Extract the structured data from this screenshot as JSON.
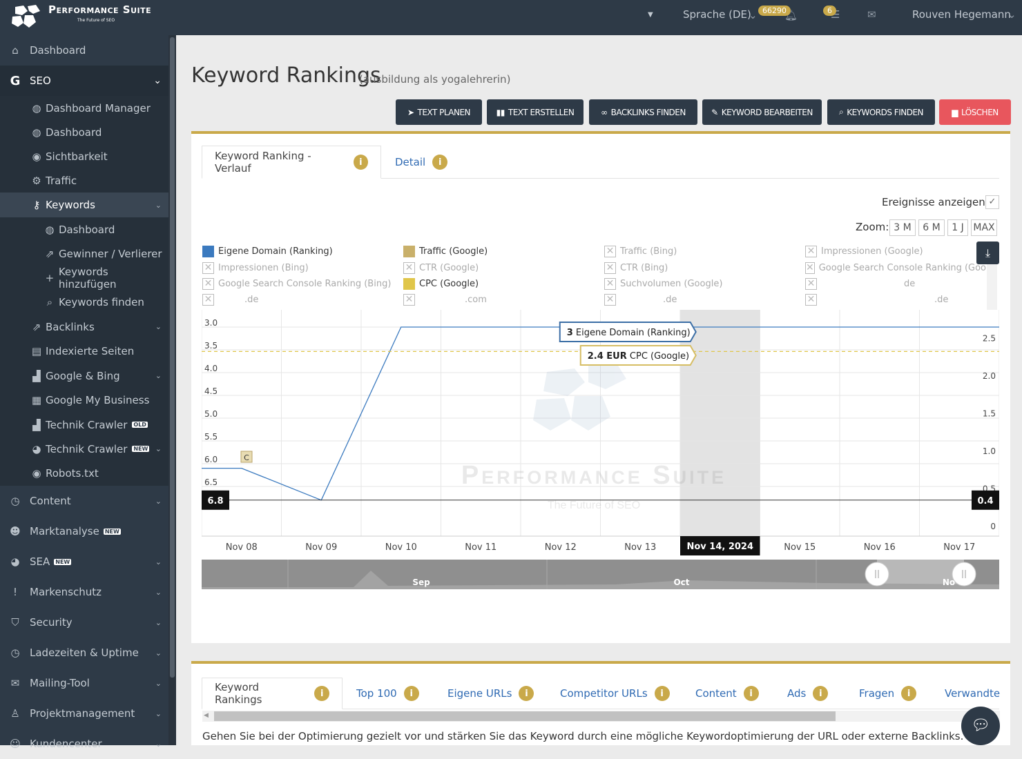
{
  "header": {
    "brand": "Performance Suite",
    "brand_sub": "The Future of SEO",
    "language": "Sprache (DE)",
    "notif_count": "66290",
    "task_count": "6",
    "user": "Rouven Hegemann"
  },
  "sidebar": {
    "items": [
      {
        "label": "Dashboard",
        "icon": "home-icon"
      },
      {
        "label": "SEO",
        "icon": "google-g-icon"
      },
      {
        "label": "Dashboard Manager",
        "icon": "dashboard-icon"
      },
      {
        "label": "Dashboard",
        "icon": "dashboard-icon"
      },
      {
        "label": "Sichtbarkeit",
        "icon": "eye-icon"
      },
      {
        "label": "Traffic",
        "icon": "cogs-icon"
      },
      {
        "label": "Keywords",
        "icon": "key-icon"
      },
      {
        "label": "Dashboard",
        "icon": "dashboard-icon"
      },
      {
        "label": "Gewinner / Verlierer",
        "icon": "external-link-icon"
      },
      {
        "label": "Keywords hinzufügen",
        "icon": "plus-icon"
      },
      {
        "label": "Keywords finden",
        "icon": "search-icon"
      },
      {
        "label": "Backlinks",
        "icon": "external-link-icon"
      },
      {
        "label": "Indexierte Seiten",
        "icon": "file-icon"
      },
      {
        "label": "Google & Bing",
        "icon": "area-chart-icon"
      },
      {
        "label": "Google My Business",
        "icon": "store-icon"
      },
      {
        "label": "Technik Crawler",
        "icon": "area-chart-icon",
        "tag": "OLD"
      },
      {
        "label": "Technik Crawler",
        "icon": "pie-chart-icon",
        "tag": "NEW"
      },
      {
        "label": "Robots.txt",
        "icon": "eye-icon"
      },
      {
        "label": "Content",
        "icon": "clock-icon"
      },
      {
        "label": "Marktanalyse",
        "icon": "users-icon",
        "tag": "NEW"
      },
      {
        "label": "SEA",
        "icon": "pie-chart-icon",
        "tag": "NEW"
      },
      {
        "label": "Markenschutz",
        "icon": "exclamation-icon"
      },
      {
        "label": "Security",
        "icon": "shield-icon"
      },
      {
        "label": "Ladezeiten & Uptime",
        "icon": "clock-icon"
      },
      {
        "label": "Mailing-Tool",
        "icon": "envelope-icon"
      },
      {
        "label": "Projektmanagement",
        "icon": "sitemap-icon"
      },
      {
        "label": "Kundencenter",
        "icon": "user-icon"
      }
    ]
  },
  "page": {
    "title": "Keyword Rankings",
    "subtitle": "(ausbildung als yogalehrerin)"
  },
  "toolbar": {
    "buttons": [
      "TEXT PLANEN",
      "TEXT ERSTELLEN",
      "BACKLINKS FINDEN",
      "KEYWORD BEARBEITEN",
      "KEYWORDS FINDEN",
      "LÖSCHEN"
    ]
  },
  "chart_panel": {
    "tab_active": "Keyword Ranking - Verlauf",
    "tab_detail": "Detail",
    "events_label": "Ereignisse anzeigen",
    "zoom_label": "Zoom:",
    "zoom_options": [
      "3 M",
      "6 M",
      "1 J",
      "MAX"
    ],
    "legend": [
      {
        "label": "Eigene Domain (Ranking)",
        "color": "#3b7abf",
        "on": true
      },
      {
        "label": "Traffic (Google)",
        "color": "#c9b06a",
        "on": true
      },
      {
        "label": "Traffic (Bing)",
        "on": false
      },
      {
        "label": "Impressionen (Google)",
        "on": false
      },
      {
        "label": "Impressionen (Bing)",
        "on": false
      },
      {
        "label": "CTR (Google)",
        "on": false
      },
      {
        "label": "CTR (Bing)",
        "on": false
      },
      {
        "label": "Google Search Console Ranking (Googl",
        "on": false
      },
      {
        "label": "Google Search Console Ranking (Bing)",
        "on": false
      },
      {
        "label": "CPC (Google)",
        "color": "#e0c64a",
        "on": true
      },
      {
        "label": "Suchvolumen (Google)",
        "on": false
      },
      {
        "label": "de",
        "on": false
      },
      {
        "label": ".de",
        "on": false
      },
      {
        "label": ".com",
        "on": false
      },
      {
        "label": ".de",
        "on": false
      },
      {
        "label": ".de",
        "on": false
      }
    ]
  },
  "chart_data": {
    "type": "line",
    "categories": [
      "Nov 08",
      "Nov 09",
      "Nov 10",
      "Nov 11",
      "Nov 12",
      "Nov 13",
      "Nov 14, 2024",
      "Nov 15",
      "Nov 16",
      "Nov 17"
    ],
    "series": [
      {
        "name": "Eigene Domain (Ranking)",
        "axis": "left",
        "color": "#3b7abf",
        "values": [
          6.1,
          6.8,
          3,
          3,
          3,
          3,
          3,
          3,
          3,
          3
        ]
      },
      {
        "name": "CPC (Google)",
        "axis": "right",
        "color": "#e0c64a",
        "values": [
          2.4,
          2.4,
          2.4,
          2.4,
          2.4,
          2.4,
          2.4,
          2.4,
          2.4,
          2.4
        ]
      }
    ],
    "y_left": {
      "ticks": [
        "3.0",
        "3.5",
        "4.0",
        "4.5",
        "5.0",
        "5.5",
        "6.0",
        "6.5"
      ],
      "min": 2.9,
      "max": 7.0,
      "reversed": true,
      "marker": "6.8"
    },
    "y_right": {
      "ticks": [
        "2.5",
        "2.0",
        "1.5",
        "1.0",
        "0.5",
        "0"
      ],
      "min": 0,
      "max": 2.75,
      "marker": "0.4"
    },
    "tooltip_ranking": {
      "value": "3",
      "label": "Eigene Domain (Ranking)"
    },
    "tooltip_cpc": {
      "value": "2.4 EUR",
      "label": "CPC (Google)"
    },
    "highlight_category": "Nov 14, 2024",
    "event_flag": "C",
    "navigator_labels": [
      "Sep",
      "Oct",
      "No"
    ],
    "watermark": "Performance Suite",
    "watermark_sub": "The Future of SEO"
  },
  "bottom_panel": {
    "tabs": [
      "Keyword Rankings",
      "Top 100",
      "Eigene URLs",
      "Competitor URLs",
      "Content",
      "Ads",
      "Fragen",
      "Verwandte"
    ],
    "hint": "Gehen Sie bei der Optimierung gezielt vor und stärken Sie das Keyword durch eine mögliche Keywordoptimierung der URL oder externe Backlinks."
  }
}
